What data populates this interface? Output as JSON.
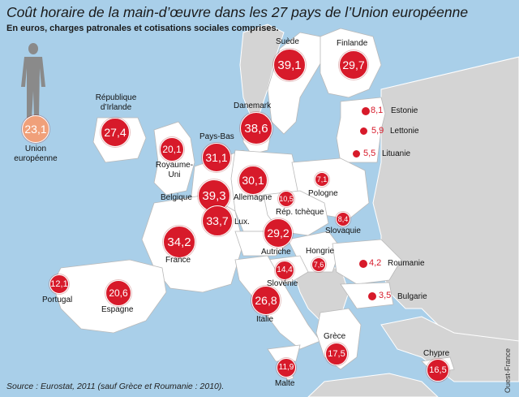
{
  "header": {
    "title": "Coût horaire de la main-d’œuvre dans les 27 pays de l’Union européenne",
    "subtitle": "En euros, charges patronales et cotisations sociales comprises."
  },
  "footer": {
    "source": "Source : Eurostat, 2011 (sauf Grèce et Roumanie : 2010).",
    "credit": "Ouest-France"
  },
  "eu_average": {
    "name_line1": "Union",
    "name_line2": "européenne",
    "value": "23,1"
  },
  "countries": [
    {
      "name": "Suède",
      "value": "39,1"
    },
    {
      "name": "Finlande",
      "value": "29,7"
    },
    {
      "name_line1": "République",
      "name_line2": "d’Irlande",
      "value": "27,4"
    },
    {
      "name": "Danemark",
      "value": "38,6"
    },
    {
      "name": "Estonie",
      "value": "8,1"
    },
    {
      "name": "Lettonie",
      "value": "5,9"
    },
    {
      "name": "Lituanie",
      "value": "5,5"
    },
    {
      "name_line1": "Royaume-",
      "name_line2": "Uni",
      "value": "20,1"
    },
    {
      "name": "Pays-Bas",
      "value": "31,1"
    },
    {
      "name": "Allemagne",
      "value": "30,1"
    },
    {
      "name": "Pologne",
      "value": "7,1"
    },
    {
      "name": "Belgique",
      "value": "39,3"
    },
    {
      "name": "Lux.",
      "value": "33,7"
    },
    {
      "name": "Rép. tchèque",
      "value": "10,5"
    },
    {
      "name": "Slovaquie",
      "value": "8,4"
    },
    {
      "name": "France",
      "value": "34,2"
    },
    {
      "name": "Autriche",
      "value": "29,2"
    },
    {
      "name": "Hongrie",
      "value": "7,6"
    },
    {
      "name": "Roumanie",
      "value": "4,2"
    },
    {
      "name": "Slovénie",
      "value": "14,4"
    },
    {
      "name": "Portugal",
      "value": "12,1"
    },
    {
      "name": "Espagne",
      "value": "20,6"
    },
    {
      "name": "Italie",
      "value": "26,8"
    },
    {
      "name": "Bulgarie",
      "value": "3,5"
    },
    {
      "name": "Grèce",
      "value": "17,5"
    },
    {
      "name": "Chypre",
      "value": "16,5"
    },
    {
      "name": "Malte",
      "value": "11,9"
    }
  ],
  "colors": {
    "sea": "#a9cfe9",
    "eu_land": "#ffffff",
    "non_eu_land": "#d4d4d4",
    "bubble": "#d71a2a",
    "eu_bubble": "#f0a07a",
    "silhouette": "#8a8a8a"
  }
}
